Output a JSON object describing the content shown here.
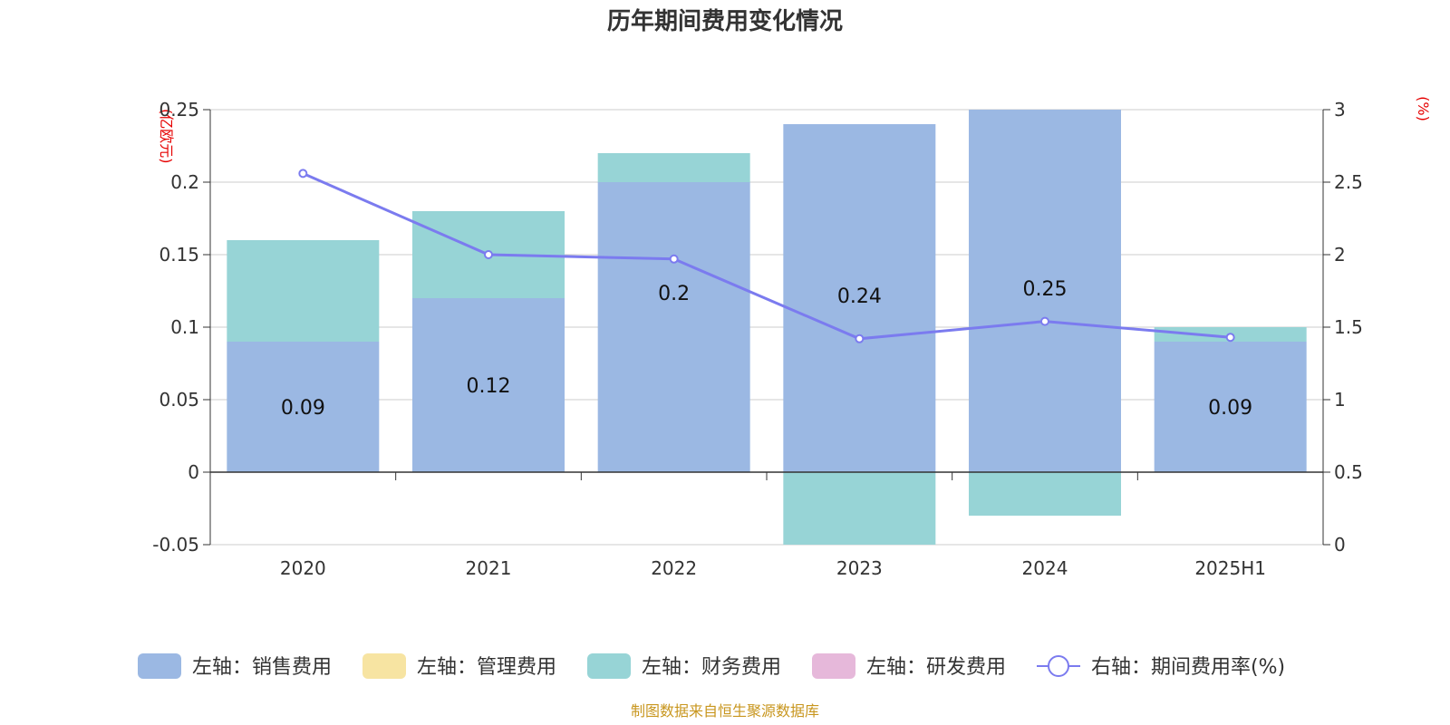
{
  "chart_data": {
    "type": "bar",
    "title": "历年期间费用变化情况",
    "left_unit": "(亿欧元)",
    "right_unit": "(%)",
    "categories": [
      "2020",
      "2021",
      "2022",
      "2023",
      "2024",
      "2025H1"
    ],
    "left_axis": {
      "min": -0.05,
      "max": 0.25,
      "ticks": [
        0.25,
        0.2,
        0.15,
        0.1,
        0.05,
        0,
        -0.05
      ],
      "tick_labels": [
        "0.25",
        "0.2",
        "0.15",
        "0.1",
        "0.05",
        "0",
        "-0.05"
      ]
    },
    "right_axis": {
      "min": 0,
      "max": 3,
      "ticks": [
        3,
        2.5,
        2,
        1.5,
        1,
        0.5,
        0
      ],
      "tick_labels": [
        "3",
        "2.5",
        "2",
        "1.5",
        "1",
        "0.5",
        "0"
      ]
    },
    "stacked": true,
    "series": [
      {
        "name": "左轴：销售费用",
        "axis": "left",
        "color": "#9bb8e3",
        "values": [
          0.09,
          0.12,
          0.2,
          0.24,
          0.25,
          0.09
        ],
        "labels": [
          "0.09",
          "0.12",
          "0.2",
          "0.24",
          "0.25",
          "0.09"
        ]
      },
      {
        "name": "左轴：管理费用",
        "axis": "left",
        "color": "#f7e4a2",
        "values": [
          0,
          0,
          0,
          0,
          0,
          0
        ]
      },
      {
        "name": "左轴：财务费用",
        "axis": "left",
        "color": "#97d4d6",
        "values": [
          0.07,
          0.06,
          0.02,
          -0.05,
          -0.03,
          0.01
        ]
      },
      {
        "name": "左轴：研发费用",
        "axis": "left",
        "color": "#e6b8da",
        "values": [
          0,
          0,
          0,
          0,
          0,
          0
        ]
      },
      {
        "name": "右轴：期间费用率(%)",
        "axis": "right",
        "type": "line",
        "color": "#7b7bef",
        "values": [
          2.56,
          2.0,
          1.97,
          1.42,
          1.54,
          1.43
        ]
      }
    ],
    "grid": true,
    "legend_position": "bottom",
    "source": "制图数据来自恒生聚源数据库"
  }
}
